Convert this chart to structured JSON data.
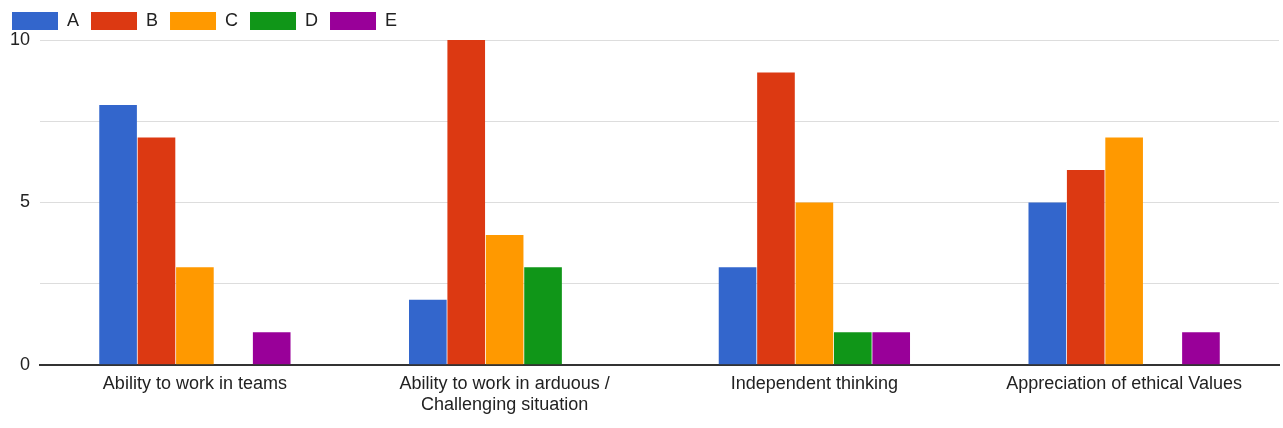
{
  "chart_data": {
    "type": "bar",
    "categories": [
      "Ability to work in teams",
      "Ability to work in arduous / Challenging situation",
      "Independent thinking",
      "Appreciation of ethical Values"
    ],
    "series": [
      {
        "name": "A",
        "color": "#3366cc",
        "values": [
          8,
          2,
          3,
          5
        ]
      },
      {
        "name": "B",
        "color": "#dc3912",
        "values": [
          7,
          10,
          9,
          6
        ]
      },
      {
        "name": "C",
        "color": "#ff9900",
        "values": [
          3,
          4,
          5,
          7
        ]
      },
      {
        "name": "D",
        "color": "#109618",
        "values": [
          0,
          3,
          1,
          0
        ]
      },
      {
        "name": "E",
        "color": "#990099",
        "values": [
          1,
          0,
          1,
          1
        ]
      }
    ],
    "ylim": [
      0,
      10
    ],
    "yticks": [
      0,
      {
        "value": 2.5,
        "label": null
      },
      5,
      {
        "value": 7.5,
        "label": null
      },
      10
    ],
    "grid": "y",
    "legend": "top left"
  }
}
